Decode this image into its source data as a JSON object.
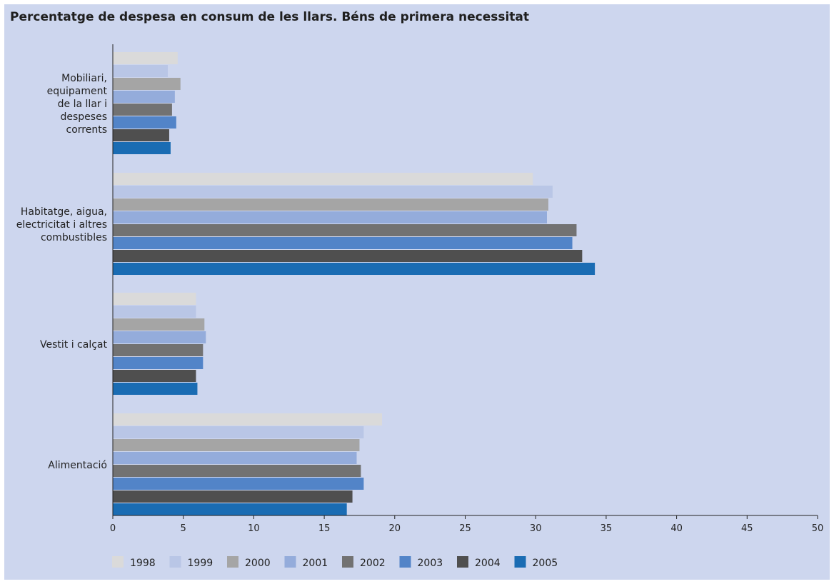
{
  "chart_data": {
    "type": "bar",
    "orientation": "horizontal",
    "title": "Percentatge de despesa en consum de les llars. Béns de primera necessitat",
    "categories": [
      "Mobiliari, equipament de la llar i despeses corrents",
      "Habitatge, aigua, electricitat i altres combustibles",
      "Vestit i calçat",
      "Alimentació"
    ],
    "category_label_lines": [
      [
        "Mobiliari,",
        "equipament",
        "de la llar i",
        "despeses",
        "corrents"
      ],
      [
        "Habitatge, aigua,",
        "electricitat i altres",
        "combustibles"
      ],
      [
        "Vestit i calçat"
      ],
      [
        "Alimentació"
      ]
    ],
    "series": [
      {
        "name": "1998",
        "color": "#dadada",
        "values": [
          4.6,
          29.8,
          5.9,
          19.1
        ]
      },
      {
        "name": "1999",
        "color": "#b9c6e6",
        "values": [
          3.9,
          31.2,
          5.9,
          17.8
        ]
      },
      {
        "name": "2000",
        "color": "#a5a5a5",
        "values": [
          4.8,
          30.9,
          6.5,
          17.5
        ]
      },
      {
        "name": "2001",
        "color": "#94acdb",
        "values": [
          4.4,
          30.8,
          6.6,
          17.3
        ]
      },
      {
        "name": "2002",
        "color": "#727272",
        "values": [
          4.2,
          32.9,
          6.4,
          17.6
        ]
      },
      {
        "name": "2003",
        "color": "#5284c8",
        "values": [
          4.5,
          32.6,
          6.4,
          17.8
        ]
      },
      {
        "name": "2004",
        "color": "#4f4f4f",
        "values": [
          4.0,
          33.3,
          5.9,
          17.0
        ]
      },
      {
        "name": "2005",
        "color": "#1a6cb3",
        "values": [
          4.1,
          34.2,
          6.0,
          16.6
        ]
      }
    ],
    "xlim": [
      0,
      50
    ],
    "xticks": [
      0,
      5,
      10,
      15,
      20,
      25,
      30,
      35,
      40,
      45,
      50
    ],
    "grid": false,
    "legend_position": "bottom"
  }
}
